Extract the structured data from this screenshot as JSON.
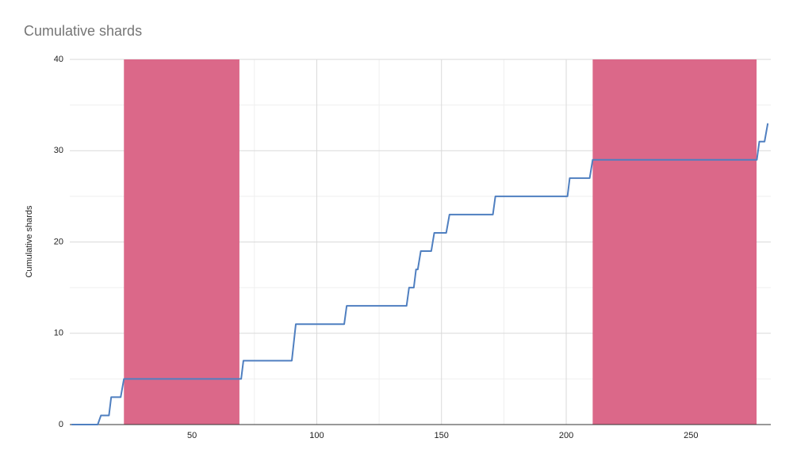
{
  "chart_data": {
    "type": "line",
    "title": "Cumulative shards",
    "y_label": "Cumulative shards",
    "x": [
      1.7,
      12.2,
      13.5,
      16.7,
      17.6,
      21.4,
      22.7,
      69.7,
      70.6,
      90,
      91.6,
      111,
      112,
      136,
      137,
      138.9,
      139.8,
      140.5,
      141.7,
      145.9,
      147.1,
      151.9,
      153.2,
      170.6,
      171.6,
      200.5,
      201.4,
      209.4,
      210.6,
      276.4,
      277.4,
      279.5,
      280.8
    ],
    "series": [
      {
        "name": "Cumulative shards",
        "color": "#4f7fc0",
        "values": [
          0,
          0,
          1,
          1,
          3,
          3,
          5,
          5,
          7,
          7,
          11,
          11,
          13,
          13,
          15,
          15,
          17,
          17,
          19,
          19,
          21,
          21,
          23,
          23,
          25,
          25,
          27,
          27,
          29,
          29,
          31,
          31,
          33
        ]
      }
    ],
    "bands": [
      [
        22.7,
        69
      ],
      [
        210.6,
        276.3
      ]
    ],
    "band_color": "#db6889",
    "xlim": [
      1,
      282
    ],
    "xticks": [
      50,
      100,
      150,
      200,
      250
    ],
    "minor_xticks": [
      25,
      75,
      125,
      175,
      225,
      275
    ],
    "ylim": [
      0,
      40
    ],
    "yticks": [
      0,
      10,
      20,
      30,
      40
    ],
    "minor_yticks": [
      5,
      15,
      25,
      35
    ],
    "grid": true
  }
}
